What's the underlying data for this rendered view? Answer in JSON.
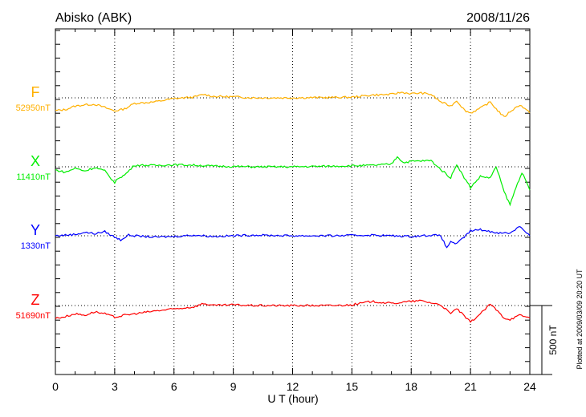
{
  "chart_data": {
    "type": "line",
    "title": "Abisko (ABK)",
    "date": "2008/11/26",
    "xlabel": "U T (hour)",
    "xlim": [
      0,
      24
    ],
    "xticks": [
      "0",
      "3",
      "6",
      "9",
      "12",
      "15",
      "18",
      "21",
      "24"
    ],
    "grid": true,
    "scale_bar": "500 nT",
    "footnote": "Plotted at 2009/03/09 20:20 UT",
    "series": [
      {
        "name": "F",
        "baseline": "52950nT",
        "color": "#ffb000",
        "x": [
          0,
          0.5,
          1,
          1.5,
          2,
          2.5,
          3,
          3.5,
          4,
          5,
          6,
          7,
          7.5,
          8,
          9,
          10,
          12,
          14,
          15,
          16,
          17,
          17.5,
          18,
          18.5,
          19,
          19.5,
          20,
          20.3,
          20.7,
          21,
          21.5,
          22,
          22.3,
          22.7,
          23,
          23.5,
          24
        ],
        "y": [
          -93,
          -85,
          -60,
          -50,
          -47,
          -70,
          -95,
          -80,
          -40,
          -30,
          -5,
          5,
          25,
          10,
          8,
          0,
          0,
          3,
          5,
          20,
          25,
          40,
          30,
          35,
          25,
          -30,
          -60,
          -20,
          -90,
          -110,
          -75,
          -30,
          -80,
          -140,
          -100,
          -50,
          -110
        ]
      },
      {
        "name": "X",
        "baseline": "11410nT",
        "color": "#00ee00",
        "x": [
          0,
          0.5,
          1,
          1.5,
          2,
          2.5,
          3,
          3.2,
          3.5,
          4,
          5,
          6,
          7,
          8,
          10,
          12,
          14,
          16,
          17,
          17.3,
          17.6,
          18,
          19,
          19.5,
          20,
          20.3,
          20.6,
          21,
          21.5,
          22,
          22.3,
          22.7,
          23,
          23.3,
          23.6,
          24
        ],
        "y": [
          -23,
          -40,
          -10,
          -30,
          -5,
          -30,
          -116,
          -80,
          -60,
          12,
          10,
          15,
          12,
          5,
          0,
          0,
          5,
          10,
          20,
          75,
          30,
          40,
          45,
          -20,
          -80,
          20,
          -60,
          -150,
          -70,
          -80,
          0,
          -180,
          -275,
          -150,
          -40,
          -170
        ]
      },
      {
        "name": "Y",
        "baseline": "1330nT",
        "color": "#0000ff",
        "x": [
          0,
          0.5,
          1,
          1.5,
          2,
          2.5,
          3,
          3.3,
          3.7,
          4,
          5,
          6,
          7,
          8,
          9,
          10,
          12,
          14,
          16,
          18,
          19,
          19.5,
          19.8,
          20,
          20.3,
          20.6,
          21,
          21.5,
          22,
          22.5,
          23,
          23.5,
          24
        ],
        "y": [
          0,
          5,
          10,
          25,
          15,
          30,
          -10,
          -30,
          5,
          0,
          -10,
          -5,
          5,
          -5,
          0,
          5,
          0,
          0,
          5,
          -5,
          5,
          0,
          -90,
          -40,
          -60,
          -20,
          35,
          45,
          30,
          20,
          20,
          70,
          0
        ]
      },
      {
        "name": "Z",
        "baseline": "51690nT",
        "color": "#ff0000",
        "x": [
          0,
          0.5,
          1,
          1.5,
          2,
          2.5,
          3,
          3.5,
          4,
          5,
          6,
          7,
          7.5,
          8,
          9,
          10,
          12,
          14,
          15,
          16,
          17,
          18,
          18.5,
          19,
          19.5,
          20,
          20.3,
          20.7,
          21,
          21.5,
          22,
          22.3,
          22.7,
          23,
          23.5,
          24
        ],
        "y": [
          -93,
          -80,
          -60,
          -70,
          -45,
          -60,
          -85,
          -70,
          -60,
          -40,
          -25,
          -10,
          15,
          0,
          5,
          0,
          0,
          0,
          5,
          30,
          15,
          30,
          35,
          20,
          5,
          -60,
          -20,
          -80,
          -120,
          -60,
          10,
          -30,
          -90,
          -100,
          -70,
          -90
        ]
      }
    ]
  }
}
